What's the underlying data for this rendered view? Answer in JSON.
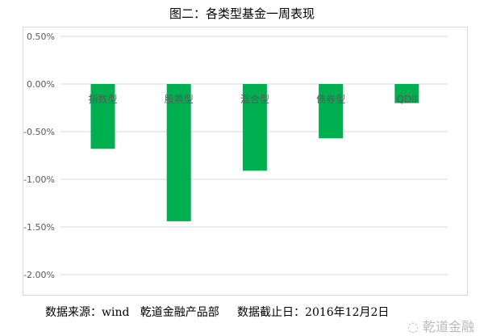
{
  "chart_data": {
    "type": "bar",
    "title": "图二：各类型基金一周表现",
    "categories": [
      "指数型",
      "股票型",
      "混合型",
      "债券型",
      "QDII"
    ],
    "values": [
      -0.68,
      -1.44,
      -0.91,
      -0.57,
      -0.2
    ],
    "ylim": [
      -2.0,
      0.5
    ],
    "yticks": [
      "0.50%",
      "0.00%",
      "-0.50%",
      "-1.00%",
      "-1.50%",
      "-2.00%"
    ],
    "ytick_values": [
      0.5,
      0,
      -0.5,
      -1.0,
      -1.5,
      -2.0
    ],
    "grid": true,
    "bar_color": "#00b050",
    "xlabel": "",
    "ylabel": ""
  },
  "footer": {
    "text": "数据来源：wind   乾道金融产品部     数据截止日：2016年12月2日"
  },
  "watermark": "乾道金融"
}
